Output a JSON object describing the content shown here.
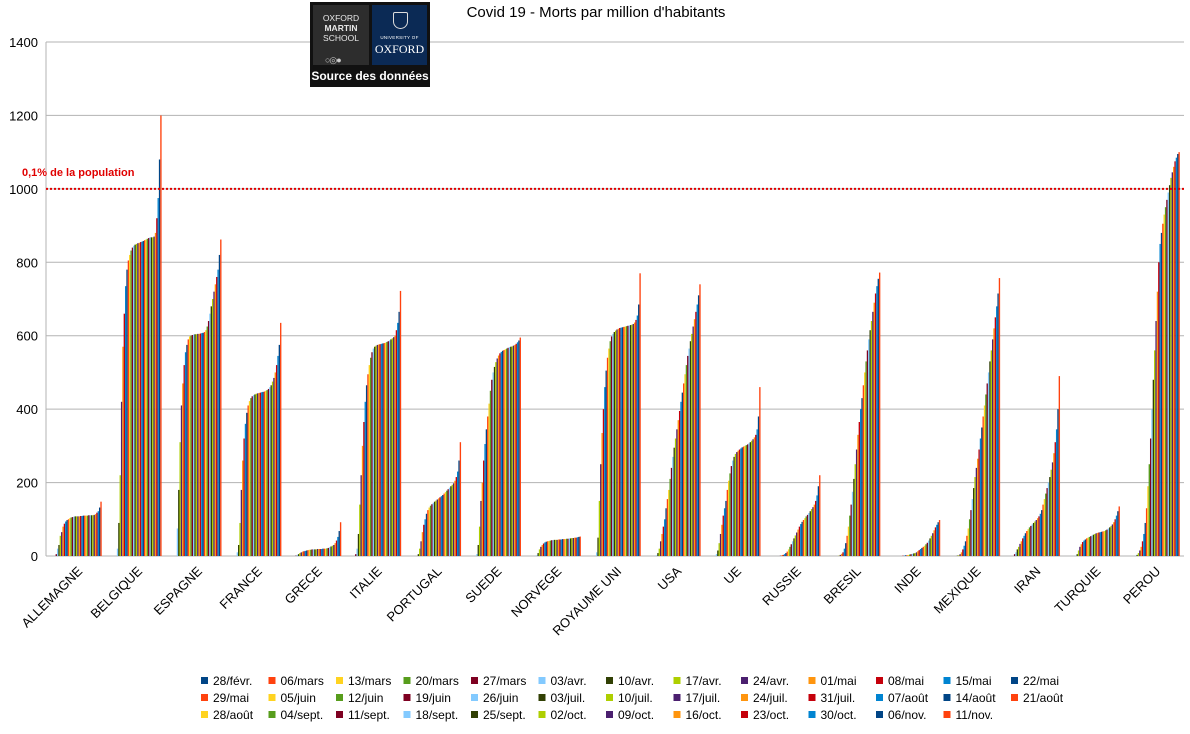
{
  "logo": {
    "oxford_martin_lines": [
      "OXFORD",
      "MARTIN",
      "SCHOOL"
    ],
    "university_line": "UNIVERSITY OF",
    "oxford_line": "OXFORD",
    "source_label": "Source des données",
    "dots_icon": "carousel-dots-icon"
  },
  "colors": {
    "reference_line": "#e00000",
    "grid": "#b3b3b3",
    "axis": "#b3b3b3",
    "text": "#000000"
  },
  "chart_data": {
    "type": "bar",
    "title": "Covid 19 - Morts par million d'habitants",
    "ylim": [
      0,
      1400
    ],
    "yticks": [
      "0",
      "200",
      "400",
      "600",
      "800",
      "1000",
      "1200",
      "1400"
    ],
    "grid": "horizontal",
    "legend_position": "bottom",
    "reference_line": {
      "value": 1000,
      "label": "0,1% de la population"
    },
    "categories": [
      "ALLEMAGNE",
      "BELGIQUE",
      "ESPAGNE",
      "FRANCE",
      "GRECE",
      "ITALIE",
      "PORTUGAL",
      "SUEDE",
      "NORVEGE",
      "ROYAUME UNI",
      "USA",
      "UE",
      "RUSSIE",
      "BRESIL",
      "INDE",
      "MEXIQUE",
      "IRAN",
      "TURQUIE",
      "PEROU"
    ],
    "series_names": [
      "28/févr.",
      "06/mars",
      "13/mars",
      "20/mars",
      "27/mars",
      "03/avr.",
      "10/avr.",
      "17/avr.",
      "24/avr.",
      "01/mai",
      "08/mai",
      "15/mai",
      "22/mai",
      "29/mai",
      "05/juin",
      "12/juin",
      "19/juin",
      "26/juin",
      "03/juil.",
      "10/juil.",
      "17/juil.",
      "24/juil.",
      "31/juil.",
      "07/août",
      "14/août",
      "21/août",
      "28/août",
      "04/sept.",
      "11/sept.",
      "18/sept.",
      "25/sept.",
      "02/oct.",
      "09/oct.",
      "16/oct.",
      "23/oct.",
      "30/oct.",
      "06/nov.",
      "11/nov."
    ],
    "series_colors": [
      "#004586",
      "#ff420e",
      "#ffd320",
      "#579d1c",
      "#7e0021",
      "#83caff",
      "#314004",
      "#aecf00",
      "#4b1f6f",
      "#ff950e",
      "#c5000b",
      "#0084d1",
      "#004586",
      "#ff420e",
      "#ffd320",
      "#579d1c",
      "#7e0021",
      "#83caff",
      "#314004",
      "#aecf00",
      "#4b1f6f",
      "#ff950e",
      "#c5000b",
      "#0084d1",
      "#004586",
      "#ff420e",
      "#ffd320",
      "#579d1c",
      "#7e0021",
      "#83caff",
      "#314004",
      "#aecf00",
      "#4b1f6f",
      "#ff950e",
      "#c5000b",
      "#0084d1",
      "#004586",
      "#ff420e"
    ],
    "values": {
      "ALLEMAGNE": [
        0,
        0,
        0,
        0,
        5,
        20,
        30,
        55,
        65,
        80,
        88,
        94,
        98,
        100,
        103,
        105,
        106,
        107,
        108,
        108,
        108,
        108,
        109,
        109,
        110,
        110,
        110,
        110,
        111,
        111,
        111,
        111,
        112,
        114,
        118,
        122,
        132,
        148
      ],
      "BELGIQUE": [
        0,
        0,
        0,
        0,
        0,
        20,
        90,
        220,
        420,
        570,
        660,
        735,
        780,
        805,
        820,
        832,
        840,
        845,
        848,
        850,
        852,
        853,
        855,
        856,
        858,
        860,
        862,
        864,
        866,
        868,
        868,
        868,
        870,
        880,
        920,
        975,
        1080,
        1200
      ],
      "ESPAGNE": [
        0,
        0,
        0,
        0,
        0,
        75,
        180,
        310,
        410,
        470,
        520,
        555,
        575,
        590,
        598,
        600,
        602,
        603,
        604,
        604,
        605,
        605,
        606,
        607,
        608,
        610,
        615,
        625,
        640,
        660,
        680,
        700,
        720,
        740,
        760,
        780,
        820,
        862
      ],
      "FRANCE": [
        0,
        0,
        0,
        0,
        0,
        10,
        30,
        90,
        180,
        260,
        320,
        360,
        390,
        410,
        422,
        430,
        435,
        438,
        440,
        442,
        443,
        444,
        445,
        446,
        447,
        448,
        450,
        452,
        455,
        460,
        465,
        475,
        485,
        500,
        520,
        545,
        575,
        635
      ],
      "GRECE": [
        0,
        0,
        0,
        0,
        1,
        3,
        5,
        8,
        10,
        12,
        13,
        14,
        15,
        16,
        17,
        17,
        18,
        18,
        18,
        18,
        19,
        19,
        19,
        19,
        20,
        20,
        20,
        21,
        22,
        24,
        26,
        28,
        30,
        35,
        42,
        52,
        68,
        92
      ],
      "ITALIE": [
        0,
        0,
        0,
        0,
        5,
        20,
        60,
        140,
        220,
        300,
        365,
        420,
        465,
        495,
        520,
        540,
        555,
        565,
        570,
        573,
        575,
        576,
        577,
        578,
        579,
        580,
        581,
        583,
        585,
        587,
        590,
        593,
        596,
        600,
        615,
        635,
        665,
        722
      ],
      "PORTUGAL": [
        0,
        0,
        0,
        0,
        0,
        0,
        5,
        20,
        40,
        65,
        85,
        100,
        115,
        125,
        132,
        137,
        141,
        145,
        148,
        151,
        154,
        157,
        160,
        163,
        166,
        170,
        174,
        178,
        182,
        186,
        190,
        194,
        198,
        205,
        215,
        230,
        260,
        310
      ],
      "SUEDE": [
        0,
        0,
        0,
        0,
        0,
        5,
        30,
        80,
        150,
        200,
        260,
        305,
        345,
        380,
        415,
        450,
        480,
        500,
        515,
        528,
        538,
        546,
        552,
        556,
        559,
        561,
        563,
        565,
        567,
        569,
        570,
        571,
        573,
        575,
        578,
        582,
        587,
        595
      ],
      "NORVEGE": [
        0,
        0,
        0,
        0,
        0,
        2,
        8,
        18,
        25,
        30,
        34,
        37,
        39,
        40,
        41,
        42,
        43,
        43,
        44,
        44,
        44,
        45,
        45,
        45,
        46,
        46,
        46,
        47,
        47,
        48,
        48,
        49,
        49,
        50,
        50,
        51,
        52,
        53
      ],
      "ROYAUME UNI": [
        0,
        0,
        0,
        0,
        0,
        10,
        50,
        150,
        250,
        335,
        400,
        460,
        505,
        540,
        565,
        585,
        598,
        605,
        610,
        614,
        617,
        619,
        621,
        622,
        623,
        624,
        625,
        626,
        627,
        628,
        629,
        630,
        632,
        636,
        643,
        655,
        685,
        770
      ],
      "USA": [
        0,
        0,
        0,
        0,
        0,
        2,
        8,
        20,
        40,
        60,
        80,
        100,
        130,
        155,
        180,
        210,
        240,
        270,
        295,
        320,
        345,
        370,
        395,
        420,
        445,
        470,
        495,
        520,
        545,
        565,
        585,
        605,
        625,
        645,
        665,
        685,
        710,
        740
      ],
      "UE": [
        0,
        0,
        0,
        0,
        0,
        5,
        15,
        35,
        60,
        85,
        110,
        130,
        150,
        180,
        205,
        225,
        245,
        260,
        270,
        278,
        283,
        287,
        290,
        293,
        296,
        298,
        300,
        302,
        304,
        307,
        310,
        314,
        318,
        323,
        330,
        345,
        380,
        460
      ],
      "RUSSIE": [
        0,
        0,
        0,
        0,
        0,
        0,
        0,
        0,
        1,
        2,
        3,
        5,
        8,
        12,
        18,
        25,
        32,
        40,
        48,
        56,
        64,
        72,
        80,
        87,
        93,
        98,
        103,
        108,
        112,
        117,
        122,
        128,
        133,
        140,
        150,
        165,
        190,
        220
      ],
      "BRESIL": [
        0,
        0,
        0,
        0,
        0,
        0,
        0,
        1,
        3,
        6,
        10,
        20,
        35,
        55,
        80,
        110,
        140,
        175,
        210,
        250,
        290,
        330,
        365,
        400,
        430,
        465,
        500,
        530,
        560,
        590,
        615,
        640,
        665,
        690,
        715,
        735,
        755,
        772
      ],
      "INDE": [
        0,
        0,
        0,
        0,
        0,
        0,
        0,
        0,
        0,
        0,
        1,
        1,
        2,
        2,
        3,
        4,
        5,
        6,
        7,
        8,
        10,
        13,
        16,
        19,
        22,
        25,
        28,
        32,
        36,
        42,
        48,
        55,
        62,
        70,
        78,
        85,
        92,
        98
      ],
      "MEXIQUE": [
        0,
        0,
        0,
        0,
        0,
        0,
        1,
        2,
        5,
        10,
        18,
        28,
        40,
        55,
        75,
        100,
        125,
        155,
        185,
        215,
        240,
        265,
        290,
        320,
        350,
        380,
        410,
        440,
        470,
        500,
        530,
        560,
        590,
        620,
        650,
        680,
        715,
        757
      ],
      "IRAN": [
        0,
        0,
        0,
        0,
        5,
        10,
        18,
        25,
        33,
        40,
        48,
        55,
        62,
        68,
        73,
        78,
        82,
        86,
        90,
        94,
        98,
        103,
        108,
        115,
        125,
        140,
        155,
        170,
        185,
        200,
        215,
        235,
        255,
        280,
        310,
        345,
        400,
        490
      ],
      "TURQUIE": [
        0,
        0,
        0,
        0,
        0,
        1,
        5,
        15,
        25,
        32,
        38,
        42,
        45,
        48,
        50,
        52,
        54,
        56,
        58,
        60,
        62,
        63,
        64,
        65,
        66,
        67,
        68,
        70,
        72,
        75,
        78,
        82,
        86,
        92,
        100,
        110,
        122,
        135
      ],
      "PEROU": [
        0,
        0,
        0,
        0,
        0,
        1,
        3,
        8,
        15,
        25,
        40,
        60,
        90,
        130,
        190,
        250,
        320,
        400,
        480,
        560,
        640,
        720,
        800,
        850,
        880,
        905,
        930,
        950,
        970,
        990,
        1010,
        1030,
        1045,
        1060,
        1075,
        1085,
        1095,
        1100
      ]
    }
  }
}
